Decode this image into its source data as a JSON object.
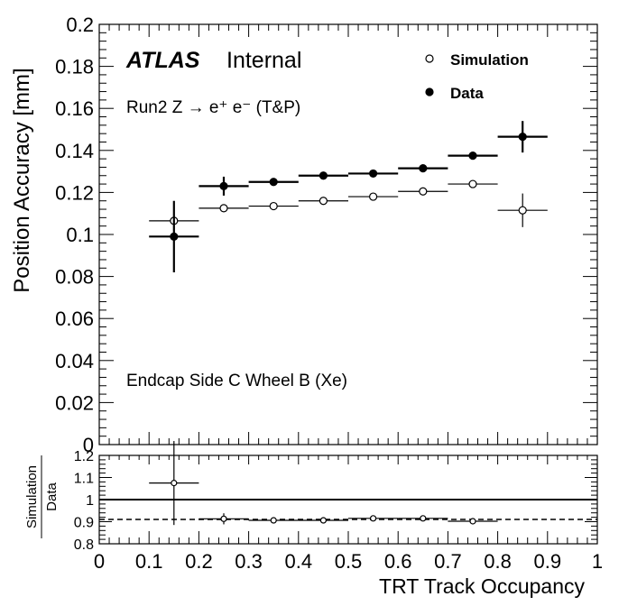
{
  "chart_data": [
    {
      "type": "scatter",
      "title": "",
      "xlabel": "TRT Track Occupancy",
      "ylabel": "Position Accuracy [mm]",
      "xlim": [
        0,
        1
      ],
      "ylim": [
        0,
        0.2
      ],
      "x_ticks": [
        "0",
        "0.1",
        "0.2",
        "0.3",
        "0.4",
        "0.5",
        "0.6",
        "0.7",
        "0.8",
        "0.9",
        "1"
      ],
      "y_ticks": [
        "0",
        "0.02",
        "0.04",
        "0.06",
        "0.08",
        "0.1",
        "0.12",
        "0.14",
        "0.16",
        "0.18",
        "0.2"
      ],
      "legend_position": "top-right",
      "annotations": {
        "experiment": "ATLAS",
        "status": "Internal",
        "process": "Run2 Z → e⁺ e⁻ (T&P)",
        "region": "Endcap Side C Wheel B (Xe)"
      },
      "series": [
        {
          "name": "Simulation",
          "marker": "open-circle",
          "color": "#000000",
          "points": [
            {
              "x": 0.15,
              "y": 0.1065,
              "xerr": 0.05,
              "yerr": 0.0
            },
            {
              "x": 0.25,
              "y": 0.1125,
              "xerr": 0.05,
              "yerr": 0.0
            },
            {
              "x": 0.35,
              "y": 0.1135,
              "xerr": 0.05,
              "yerr": 0.0
            },
            {
              "x": 0.45,
              "y": 0.116,
              "xerr": 0.05,
              "yerr": 0.0
            },
            {
              "x": 0.55,
              "y": 0.118,
              "xerr": 0.05,
              "yerr": 0.0
            },
            {
              "x": 0.65,
              "y": 0.1205,
              "xerr": 0.05,
              "yerr": 0.0
            },
            {
              "x": 0.75,
              "y": 0.124,
              "xerr": 0.05,
              "yerr": 0.0
            },
            {
              "x": 0.85,
              "y": 0.1115,
              "xerr": 0.05,
              "yerr": 0.008
            }
          ]
        },
        {
          "name": "Data",
          "marker": "filled-circle",
          "color": "#000000",
          "points": [
            {
              "x": 0.15,
              "y": 0.099,
              "xerr": 0.05,
              "yerr": 0.017
            },
            {
              "x": 0.25,
              "y": 0.123,
              "xerr": 0.05,
              "yerr": 0.0045
            },
            {
              "x": 0.35,
              "y": 0.125,
              "xerr": 0.05,
              "yerr": 0.0015
            },
            {
              "x": 0.45,
              "y": 0.128,
              "xerr": 0.05,
              "yerr": 0.001
            },
            {
              "x": 0.55,
              "y": 0.129,
              "xerr": 0.05,
              "yerr": 0.001
            },
            {
              "x": 0.65,
              "y": 0.1315,
              "xerr": 0.05,
              "yerr": 0.001
            },
            {
              "x": 0.75,
              "y": 0.1375,
              "xerr": 0.05,
              "yerr": 0.0015
            },
            {
              "x": 0.85,
              "y": 0.1465,
              "xerr": 0.05,
              "yerr": 0.0075
            }
          ]
        }
      ]
    },
    {
      "type": "scatter",
      "title": "",
      "xlabel": "TRT Track Occupancy",
      "ylabel_numerator": "Simulation",
      "ylabel_denominator": "Data",
      "xlim": [
        0,
        1
      ],
      "ylim": [
        0.8,
        1.2
      ],
      "x_ticks": [
        "0",
        "0.1",
        "0.2",
        "0.3",
        "0.4",
        "0.5",
        "0.6",
        "0.7",
        "0.8",
        "0.9",
        "1"
      ],
      "y_ticks": [
        "0.8",
        "0.9",
        "1",
        "1.1",
        "1.2"
      ],
      "reference_lines": [
        {
          "y": 1.0,
          "style": "solid"
        },
        {
          "y": 0.91,
          "style": "dashed"
        }
      ],
      "series": [
        {
          "name": "Simulation / Data",
          "marker": "open-circle",
          "color": "#000000",
          "points": [
            {
              "x": 0.15,
              "y": 1.075,
              "xerr": 0.05,
              "yerr": 0.19
            },
            {
              "x": 0.25,
              "y": 0.913,
              "xerr": 0.05,
              "yerr": 0.025
            },
            {
              "x": 0.35,
              "y": 0.906,
              "xerr": 0.05,
              "yerr": 0.01
            },
            {
              "x": 0.45,
              "y": 0.906,
              "xerr": 0.05,
              "yerr": 0.006
            },
            {
              "x": 0.55,
              "y": 0.915,
              "xerr": 0.05,
              "yerr": 0.006
            },
            {
              "x": 0.65,
              "y": 0.915,
              "xerr": 0.05,
              "yerr": 0.006
            },
            {
              "x": 0.75,
              "y": 0.902,
              "xerr": 0.05,
              "yerr": 0.006
            }
          ]
        }
      ]
    }
  ]
}
